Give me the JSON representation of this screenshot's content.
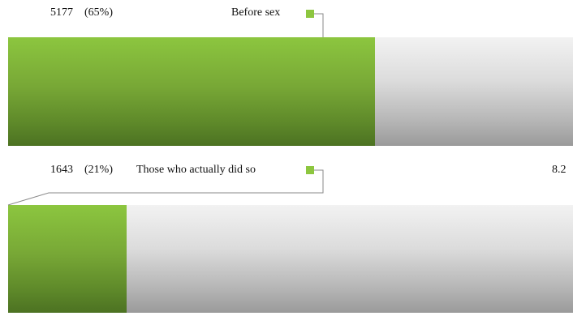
{
  "chart_data": {
    "type": "bar",
    "orientation": "horizontal",
    "series": [
      {
        "name": "Before sex",
        "count": "5177",
        "percent": "(65%)",
        "share": 0.65
      },
      {
        "name": "Those who actually did so",
        "count": "1643",
        "percent": "(21%)",
        "share": 0.21
      }
    ],
    "annotations": [
      "8.2"
    ]
  },
  "colors": {
    "bar": "#8cc63f",
    "track": "#cccccc",
    "leader": "#888888"
  }
}
